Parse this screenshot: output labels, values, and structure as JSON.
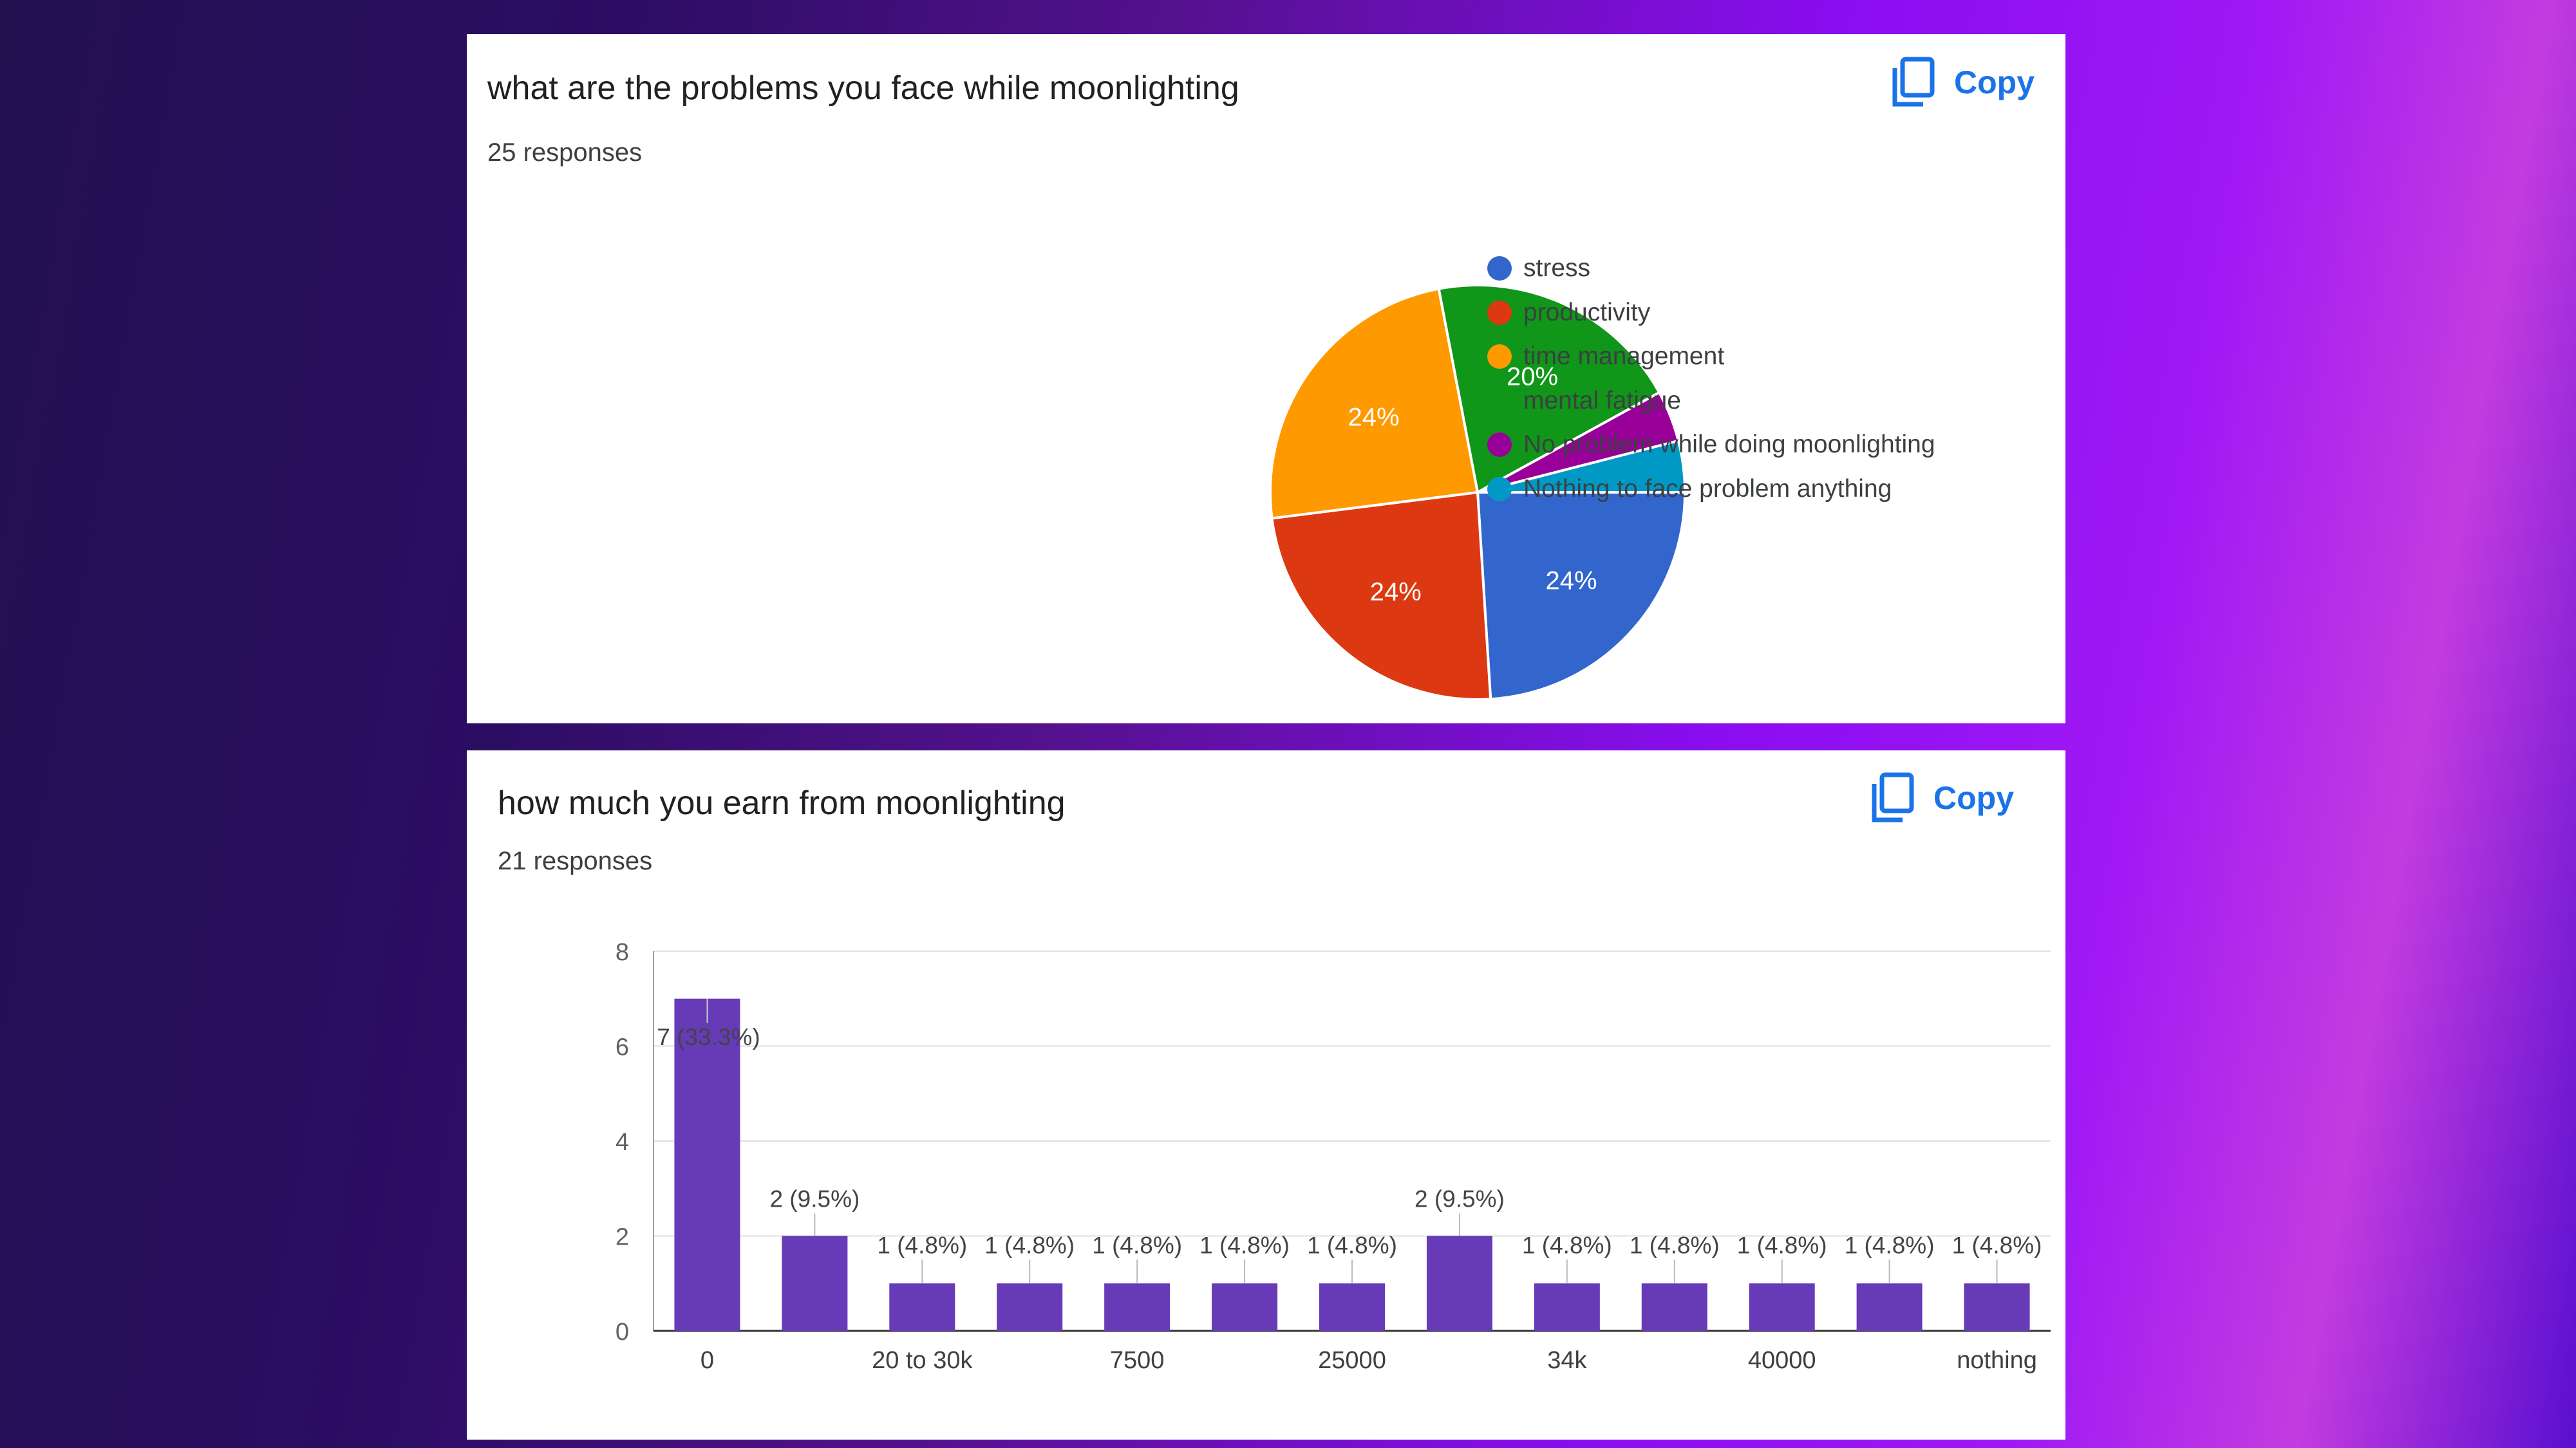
{
  "colors": {
    "blue": "#3366cc",
    "red": "#dc3912",
    "orange": "#ff9900",
    "green": "#109618",
    "purple": "#990099",
    "teal": "#0099c6",
    "bar": "#673ab7",
    "copy": "#1a73e8"
  },
  "icons": {
    "copy": "copy-icon"
  },
  "card1": {
    "title": "what are the problems you face while moonlighting",
    "responses": "25 responses",
    "copy_label": "Copy"
  },
  "card2": {
    "title": "how much  you earn from moonlighting",
    "responses": "21 responses",
    "copy_label": "Copy"
  },
  "chart_data": [
    {
      "type": "pie",
      "title": "what are the problems you face while moonlighting",
      "categories": [
        "stress",
        "productivity",
        "time management",
        "mental fatigue",
        "No problem while doing moonlighting",
        "Nothing to face problem anything"
      ],
      "values": [
        6,
        6,
        6,
        5,
        1,
        1
      ],
      "labels": [
        "24%",
        "24%",
        "24%",
        "20%",
        "",
        ""
      ],
      "colors": [
        "#3366cc",
        "#dc3912",
        "#ff9900",
        "#109618",
        "#990099",
        "#0099c6"
      ],
      "legend": "right"
    },
    {
      "type": "bar",
      "title": "how much  you earn from moonlighting",
      "categories": [
        "0",
        "",
        "20 to 30k",
        "",
        "7500",
        "",
        "25000",
        "",
        "34k",
        "",
        "40000",
        "",
        "nothing"
      ],
      "values": [
        7,
        2,
        1,
        1,
        1,
        1,
        1,
        2,
        1,
        1,
        1,
        1,
        1
      ],
      "data_labels": [
        "7 (33.3%)",
        "2 (9.5%)",
        "1 (4.8%)",
        "1 (4.8%)",
        "1 (4.8%)",
        "1 (4.8%)",
        "1 (4.8%)",
        "2 (9.5%)",
        "1 (4.8%)",
        "1 (4.8%)",
        "1 (4.8%)",
        "1 (4.8%)",
        "1 (4.8%)"
      ],
      "yticks": [
        "0",
        "2",
        "4",
        "6",
        "8"
      ],
      "ylim": [
        0,
        8
      ],
      "grid": true
    }
  ]
}
